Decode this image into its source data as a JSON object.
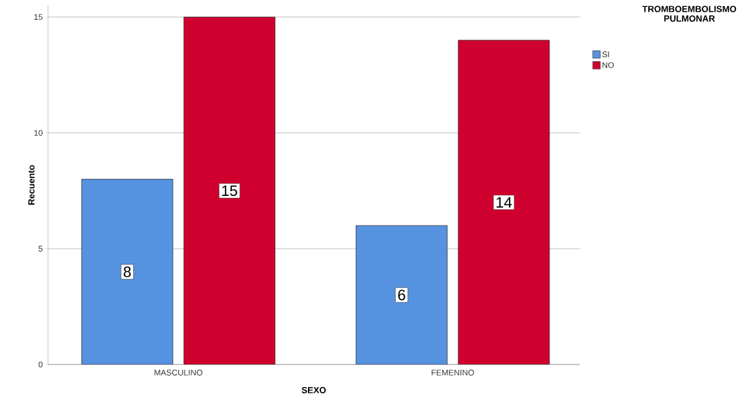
{
  "chart_data": {
    "type": "bar",
    "xlabel": "SEXO",
    "ylabel": "Recuento",
    "legend_title": "TROMBOEMBOLISMO PULMONAR",
    "categories": [
      "MASCULINO",
      "FEMENINO"
    ],
    "series": [
      {
        "name": "SI",
        "color": "#5592e0",
        "values": [
          8,
          6
        ]
      },
      {
        "name": "NO",
        "color": "#d0002e",
        "values": [
          15,
          14
        ]
      }
    ],
    "ylim": [
      0,
      15.5
    ],
    "yticks": [
      0,
      5,
      10,
      15
    ],
    "grid": "y",
    "legend": "top right",
    "data_labels": true
  }
}
